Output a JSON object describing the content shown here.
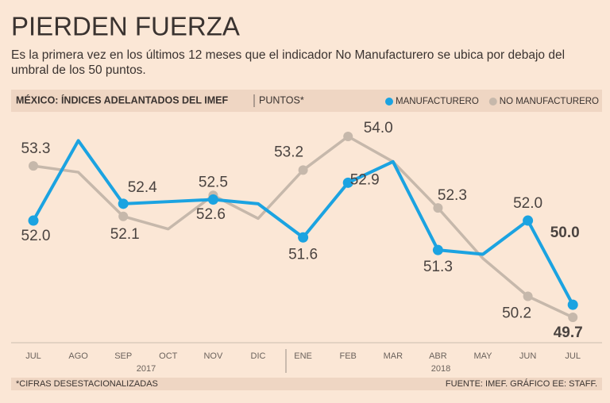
{
  "chart_data": {
    "type": "line",
    "title": "PIERDEN FUERZA",
    "subtitle": "Es la primera vez en los últimos 12 meses que el indicador No Manufacturero se ubica por debajo del umbral de los 50 puntos.",
    "header": "MÉXICO: ÍNDICES ADELANTADOS DEL IMEF",
    "unit": "PUNTOS*",
    "categories": [
      "JUL",
      "AGO",
      "SEP",
      "OCT",
      "NOV",
      "DIC",
      "ENE",
      "FEB",
      "MAR",
      "ABR",
      "MAY",
      "JUN",
      "JUL"
    ],
    "years": [
      "2017",
      "2018"
    ],
    "series": [
      {
        "name": "MANUFACTURERO",
        "color": "#1ba3e1",
        "values": [
          52.0,
          53.9,
          52.4,
          52.45,
          52.5,
          52.4,
          51.6,
          52.9,
          53.4,
          51.3,
          51.2,
          52.0,
          50.0
        ],
        "value_labels": [
          "52.0",
          null,
          "52.4",
          null,
          "52.5",
          null,
          "51.6",
          "52.9",
          null,
          "51.3",
          null,
          "52.0",
          "50.0"
        ]
      },
      {
        "name": "NO MANUFACTURERO",
        "color": "#c6b8ab",
        "values": [
          53.3,
          53.15,
          52.1,
          51.8,
          52.6,
          52.05,
          53.2,
          54.0,
          53.4,
          52.3,
          51.1,
          50.2,
          49.7
        ],
        "value_labels": [
          "53.3",
          null,
          "52.1",
          null,
          "52.6",
          null,
          "53.2",
          "54.0",
          null,
          "52.3",
          null,
          "50.2",
          "49.7"
        ]
      }
    ],
    "legend": "top-right",
    "footnote": "*CIFRAS DESESTACIONALIZADAS",
    "source": "FUENTE: IMEF. GRÁFICO EE: STAFF."
  }
}
